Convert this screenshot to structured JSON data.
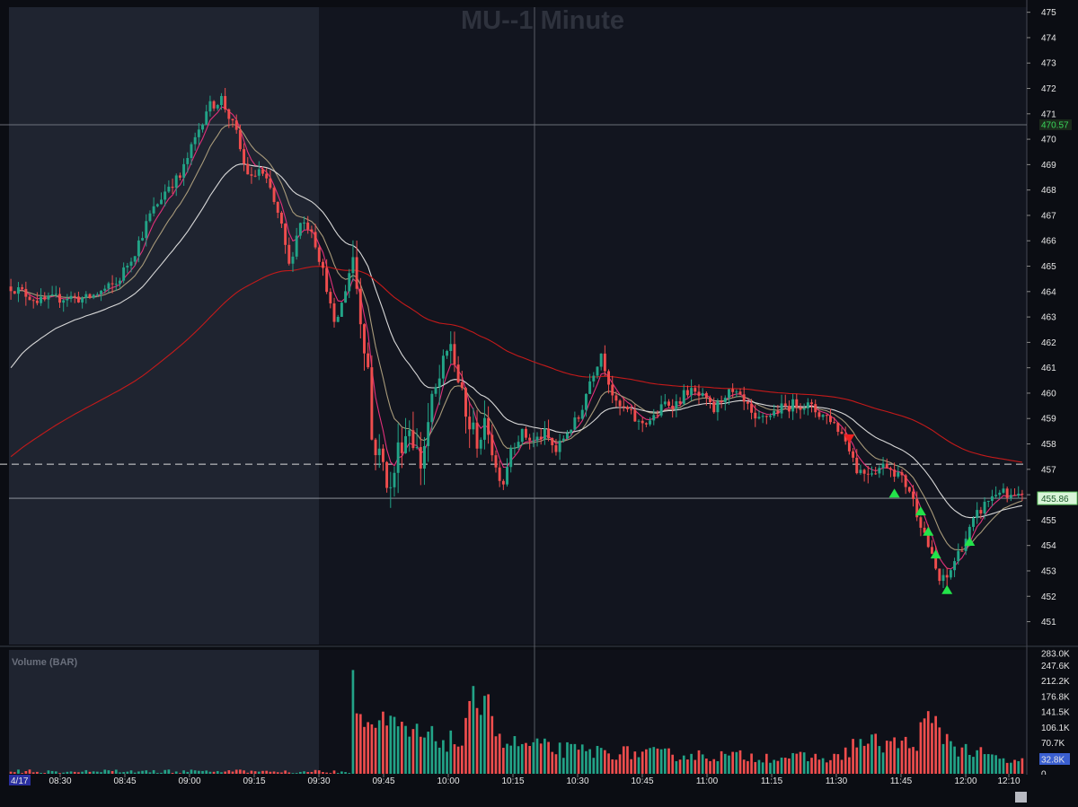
{
  "chart_data": {
    "type": "candlestick",
    "title": "MU--1 Minute",
    "symbol": "MU",
    "date_label": "4/17",
    "price_ticks": [
      475,
      474,
      473,
      472,
      471,
      470,
      469,
      468,
      467,
      466,
      465,
      464,
      463,
      462,
      461,
      460,
      459,
      458,
      457,
      456,
      455,
      454,
      453,
      452,
      451
    ],
    "price_range": [
      450.1,
      475.2
    ],
    "last_price_label": "455.86",
    "reference_price_label": "470.57",
    "dashed_level": 457.2,
    "time_ticks": [
      "08:30",
      "08:45",
      "09:00",
      "09:15",
      "09:30",
      "09:45",
      "10:00",
      "10:15",
      "10:30",
      "10:45",
      "11:00",
      "11:15",
      "11:30",
      "11:45",
      "12:00",
      "12:10"
    ],
    "premarket_until": "09:30",
    "crosshair_time": "10:20",
    "volume_title": "Volume (BAR)",
    "volume_ticks": [
      "283.0K",
      "247.6K",
      "212.2K",
      "176.8K",
      "141.5K",
      "106.1K",
      "70.7K",
      "35.4K",
      "0"
    ],
    "volume_last_label": "32.8K",
    "volume_max": 283000,
    "price_path": [
      [
        0,
        464.2
      ],
      [
        8,
        463.6
      ],
      [
        15,
        463.8
      ],
      [
        20,
        463.7
      ],
      [
        28,
        464.3
      ],
      [
        33,
        465.6
      ],
      [
        37,
        467.0
      ],
      [
        42,
        468.2
      ],
      [
        45,
        468.5
      ],
      [
        49,
        470.0
      ],
      [
        52,
        471.2
      ],
      [
        56,
        471.6
      ],
      [
        60,
        470.2
      ],
      [
        62,
        469.0
      ],
      [
        64,
        468.4
      ],
      [
        66,
        468.8
      ],
      [
        69,
        468.0
      ],
      [
        72,
        466.5
      ],
      [
        74,
        465.0
      ],
      [
        77,
        466.8
      ],
      [
        80,
        466.5
      ],
      [
        84,
        464.2
      ],
      [
        86,
        462.6
      ],
      [
        88,
        463.5
      ],
      [
        91,
        465.4
      ],
      [
        93,
        463.0
      ],
      [
        95,
        461.0
      ],
      [
        96,
        458.2
      ],
      [
        99,
        457.2
      ],
      [
        101,
        456.1
      ],
      [
        103,
        457.8
      ],
      [
        106,
        458.7
      ],
      [
        109,
        457.2
      ],
      [
        112,
        459.6
      ],
      [
        115,
        461.0
      ],
      [
        117,
        462.0
      ],
      [
        119,
        460.5
      ],
      [
        121,
        459.0
      ],
      [
        124,
        458.2
      ],
      [
        127,
        458.7
      ],
      [
        129,
        457.0
      ],
      [
        131,
        456.5
      ],
      [
        133,
        457.9
      ],
      [
        136,
        458.4
      ],
      [
        139,
        458.1
      ],
      [
        142,
        458.4
      ],
      [
        145,
        457.7
      ],
      [
        148,
        458.5
      ],
      [
        151,
        459.0
      ],
      [
        154,
        460.5
      ],
      [
        157,
        461.6
      ],
      [
        159,
        460.5
      ],
      [
        161,
        459.5
      ],
      [
        164,
        459.3
      ],
      [
        167,
        458.8
      ],
      [
        171,
        459.0
      ],
      [
        174,
        459.6
      ],
      [
        177,
        459.6
      ],
      [
        180,
        460.1
      ],
      [
        184,
        459.8
      ],
      [
        187,
        459.3
      ],
      [
        190,
        460.0
      ],
      [
        193,
        459.9
      ],
      [
        196,
        459.4
      ],
      [
        198,
        458.8
      ],
      [
        201,
        459.1
      ],
      [
        205,
        459.4
      ],
      [
        209,
        459.6
      ],
      [
        212,
        459.5
      ],
      [
        215,
        459.2
      ],
      [
        218,
        459.0
      ],
      [
        221,
        458.4
      ],
      [
        223,
        457.9
      ],
      [
        225,
        457.0
      ],
      [
        227,
        456.9
      ],
      [
        230,
        457.0
      ],
      [
        233,
        457.2
      ],
      [
        236,
        456.8
      ],
      [
        239,
        456.2
      ],
      [
        241,
        455.3
      ],
      [
        243,
        454.5
      ],
      [
        245,
        453.5
      ],
      [
        247,
        452.6
      ],
      [
        249,
        452.7
      ],
      [
        251,
        453.4
      ],
      [
        254,
        454.3
      ],
      [
        257,
        455.2
      ],
      [
        260,
        455.8
      ],
      [
        263,
        456.2
      ],
      [
        265,
        455.86
      ]
    ],
    "volume_profile": [
      [
        0,
        0.02
      ],
      [
        90,
        0.03
      ],
      [
        91,
        1.0
      ],
      [
        92,
        0.9
      ],
      [
        93,
        0.5
      ],
      [
        100,
        0.45
      ],
      [
        110,
        0.35
      ],
      [
        120,
        0.3
      ],
      [
        125,
        0.85
      ],
      [
        126,
        0.95
      ],
      [
        130,
        0.3
      ],
      [
        150,
        0.22
      ],
      [
        180,
        0.18
      ],
      [
        220,
        0.15
      ],
      [
        225,
        0.3
      ],
      [
        240,
        0.28
      ],
      [
        244,
        0.5
      ],
      [
        248,
        0.38
      ],
      [
        252,
        0.25
      ],
      [
        265,
        0.12
      ]
    ],
    "signals_up": [
      [
        235,
        456.1
      ],
      [
        242,
        455.4
      ],
      [
        244,
        454.6
      ],
      [
        246,
        453.7
      ],
      [
        249,
        452.3
      ],
      [
        255,
        454.2
      ]
    ],
    "signals_down": [
      [
        223,
        458.2
      ]
    ]
  }
}
